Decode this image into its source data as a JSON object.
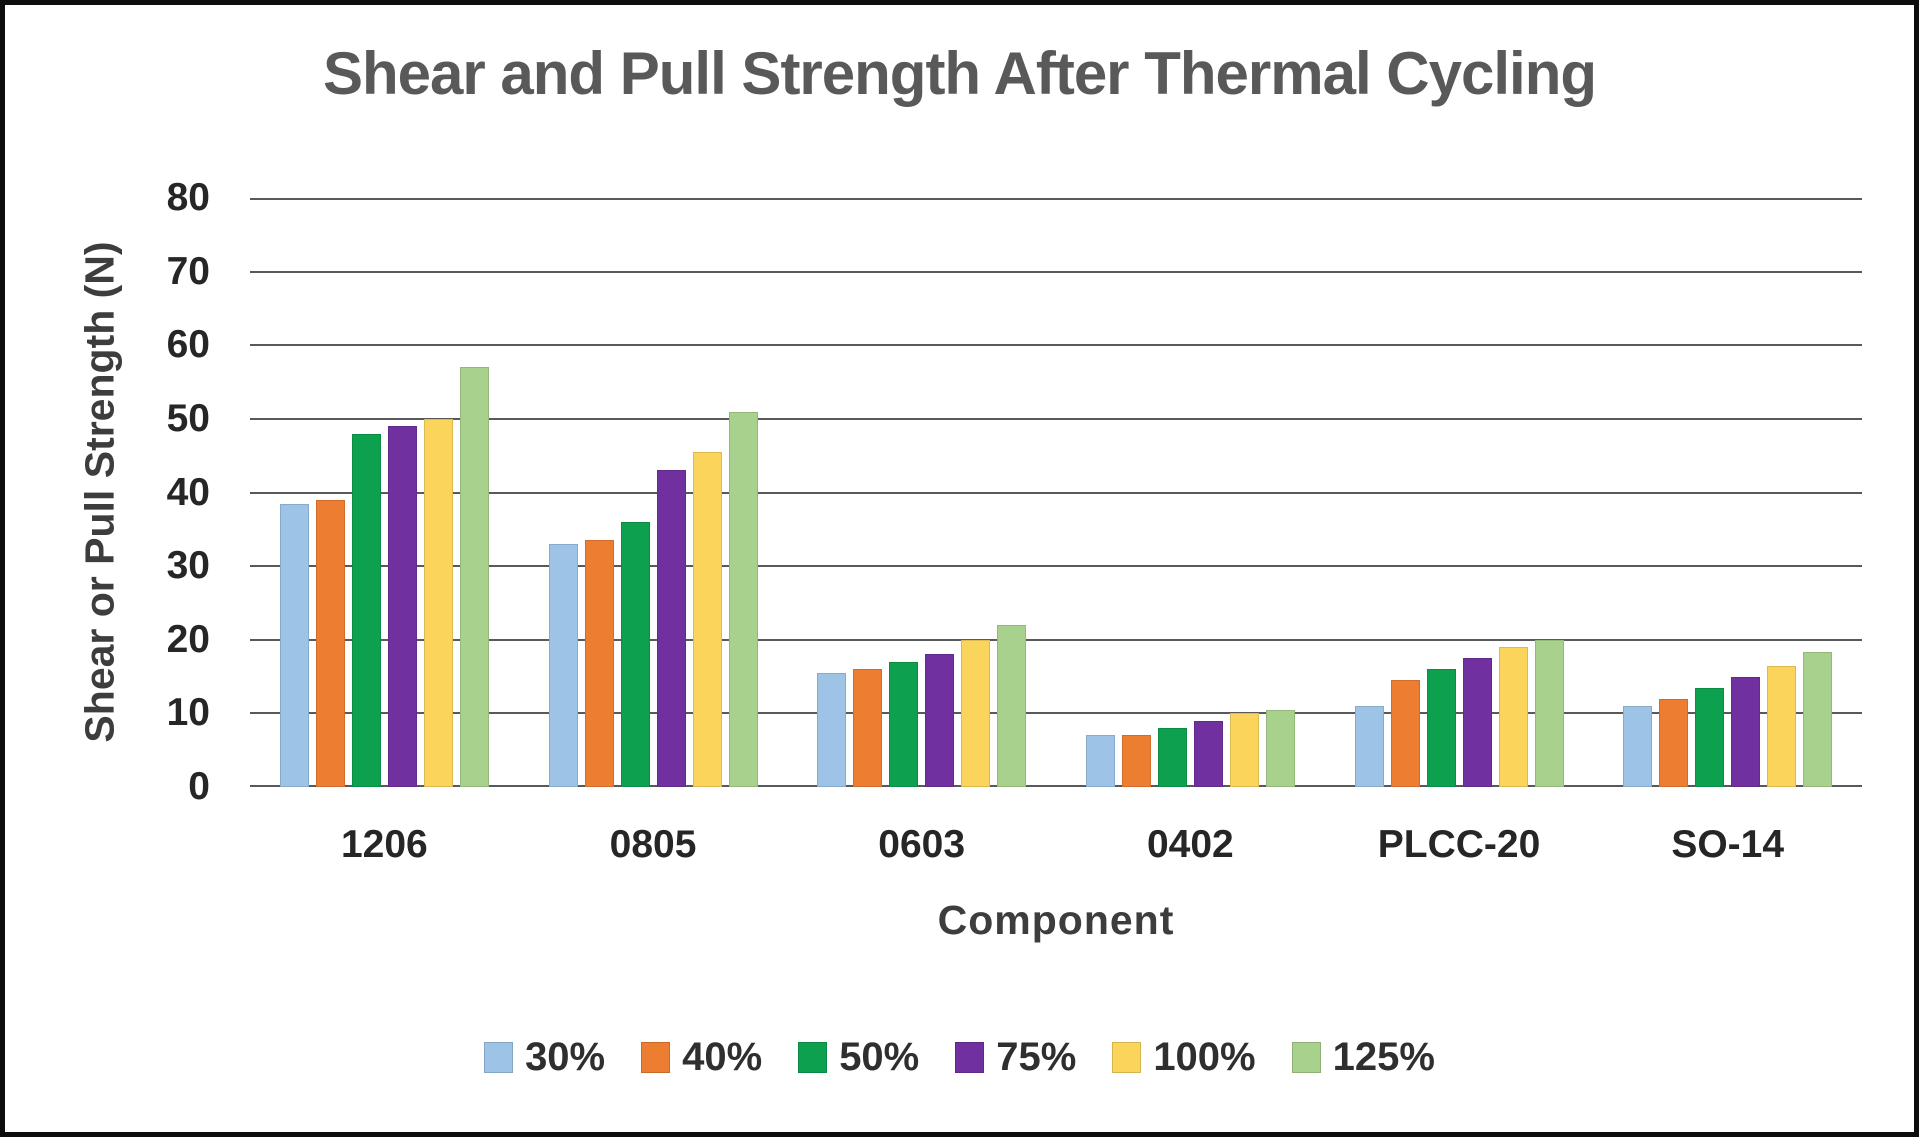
{
  "chart_data": {
    "type": "bar",
    "title": "Shear and Pull Strength After Thermal Cycling",
    "xlabel": "Component",
    "ylabel": "Shear or Pull Strength (N)",
    "categories": [
      "1206",
      "0805",
      "0603",
      "0402",
      "PLCC-20",
      "SO-14"
    ],
    "series": [
      {
        "name": "30%",
        "color": "#9DC3E6",
        "values": [
          38.5,
          33,
          15.5,
          7,
          11,
          11
        ]
      },
      {
        "name": "40%",
        "color": "#ED7D31",
        "values": [
          39,
          33.5,
          16,
          7,
          14.5,
          12
        ]
      },
      {
        "name": "50%",
        "color": "#0DA04F",
        "values": [
          48,
          36,
          17,
          8,
          16,
          13.5
        ]
      },
      {
        "name": "75%",
        "color": "#7030A0",
        "values": [
          49,
          43,
          18,
          9,
          17.5,
          15
        ]
      },
      {
        "name": "100%",
        "color": "#FBD45C",
        "values": [
          50,
          45.5,
          20,
          10,
          19,
          16.5
        ]
      },
      {
        "name": "125%",
        "color": "#A9D18E",
        "values": [
          57,
          51,
          22,
          10.5,
          20,
          18.3
        ]
      }
    ],
    "ylim": [
      0,
      80
    ],
    "yticks": [
      0,
      10,
      20,
      30,
      40,
      50,
      60,
      70,
      80
    ],
    "grid": true,
    "legend_position": "bottom",
    "colors": {
      "gridline": "#58595b",
      "title_text": "#595959",
      "axis_text": "#262626",
      "background": "#ffffff",
      "frame_border": "#0d0d0d"
    }
  }
}
